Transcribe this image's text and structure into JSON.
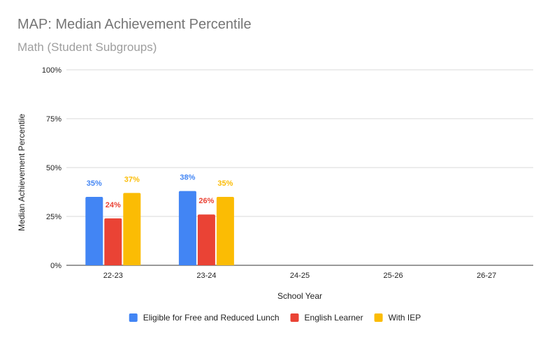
{
  "chart_data": {
    "type": "bar",
    "title": "MAP: Median Achievement Percentile",
    "subtitle": "Math (Student Subgroups)",
    "xlabel": "School Year",
    "ylabel": "Median Achievement Percentile",
    "categories": [
      "22-23",
      "23-24",
      "24-25",
      "25-26",
      "26-27"
    ],
    "ylim": [
      0,
      100
    ],
    "yticks": [
      0,
      25,
      50,
      75,
      100
    ],
    "ytick_labels": [
      "0%",
      "25%",
      "50%",
      "75%",
      "100%"
    ],
    "grid": true,
    "legend_position": "bottom",
    "series": [
      {
        "name": "Eligible for Free and Reduced Lunch",
        "color": "#4285f4",
        "values": [
          35,
          38,
          null,
          null,
          null
        ],
        "labels": [
          "35%",
          "38%",
          "",
          "",
          ""
        ]
      },
      {
        "name": "English Learner",
        "color": "#ea4335",
        "values": [
          24,
          26,
          null,
          null,
          null
        ],
        "labels": [
          "24%",
          "26%",
          "",
          "",
          ""
        ]
      },
      {
        "name": "With IEP",
        "color": "#fbbc04",
        "values": [
          37,
          35,
          null,
          null,
          null
        ],
        "labels": [
          "37%",
          "35%",
          "",
          "",
          ""
        ]
      }
    ]
  }
}
